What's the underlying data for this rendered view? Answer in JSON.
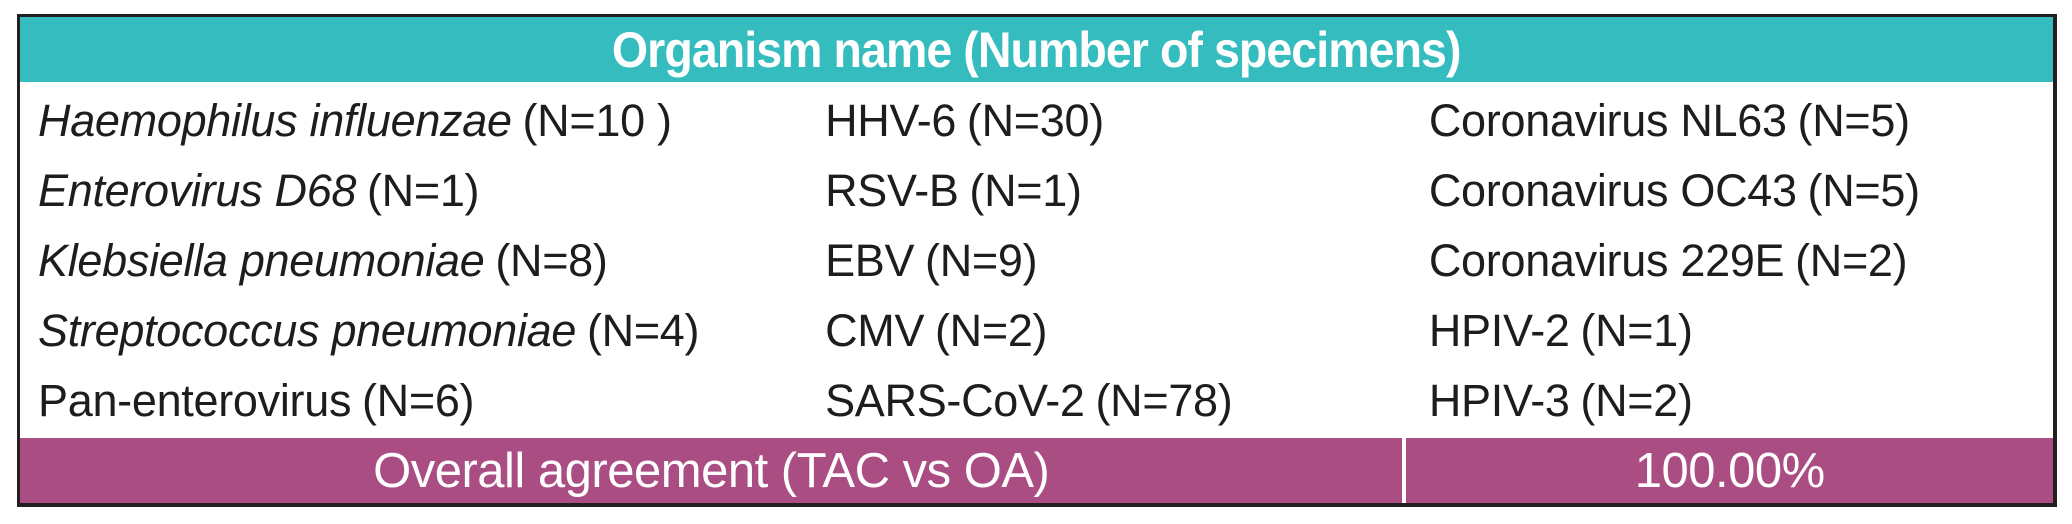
{
  "colors": {
    "header_bg": "#35BCBE",
    "footer_bg": "#A94D82",
    "border": "#231F20",
    "body_text": "#1D1D1F",
    "header_text": "#FFFFFF",
    "footer_text": "#FFFFFF",
    "divider": "#FFFFFF"
  },
  "table": {
    "header": {
      "title": "Organism name (Number of specimens)"
    },
    "columns": [
      [
        {
          "name": "Haemophilus influenzae",
          "count": "(N=10 )"
        },
        {
          "name": "Enterovirus D68",
          "count": "(N=1)"
        },
        {
          "name": "Klebsiella pneumoniae",
          "count": "(N=8)"
        },
        {
          "name": "Streptococcus pneumoniae",
          "count": "(N=4)"
        },
        {
          "name": "Pan-enterovirus",
          "count": "(N=6)"
        }
      ],
      [
        {
          "name": "HHV-6",
          "count": "(N=30)"
        },
        {
          "name": "RSV-B",
          "count": "(N=1)"
        },
        {
          "name": "EBV",
          "count": "(N=9)"
        },
        {
          "name": "CMV",
          "count": "(N=2)"
        },
        {
          "name": "SARS-CoV-2",
          "count": "(N=78)"
        }
      ],
      [
        {
          "name": "Coronavirus NL63",
          "count": "(N=5)"
        },
        {
          "name": "Coronavirus OC43",
          "count": "(N=5)"
        },
        {
          "name": "Coronavirus 229E",
          "count": "(N=2)"
        },
        {
          "name": "HPIV-2",
          "count": "(N=1)"
        },
        {
          "name": "HPIV-3",
          "count": "(N=2)"
        }
      ]
    ],
    "footer": {
      "label": "Overall agreement (TAC vs OA)",
      "value": "100.00%"
    }
  },
  "chart_data": {
    "type": "table",
    "title": "Organism name (Number of specimens)",
    "organisms": [
      {
        "name": "Haemophilus influenzae",
        "specimens": 10
      },
      {
        "name": "Enterovirus D68",
        "specimens": 1
      },
      {
        "name": "Klebsiella pneumoniae",
        "specimens": 8
      },
      {
        "name": "Streptococcus pneumoniae",
        "specimens": 4
      },
      {
        "name": "Pan-enterovirus",
        "specimens": 6
      },
      {
        "name": "HHV-6",
        "specimens": 30
      },
      {
        "name": "RSV-B",
        "specimens": 1
      },
      {
        "name": "EBV",
        "specimens": 9
      },
      {
        "name": "CMV",
        "specimens": 2
      },
      {
        "name": "SARS-CoV-2",
        "specimens": 78
      },
      {
        "name": "Coronavirus NL63",
        "specimens": 5
      },
      {
        "name": "Coronavirus OC43",
        "specimens": 5
      },
      {
        "name": "Coronavirus 229E",
        "specimens": 2
      },
      {
        "name": "HPIV-2",
        "specimens": 1
      },
      {
        "name": "HPIV-3",
        "specimens": 2
      }
    ],
    "overall_agreement": {
      "label": "Overall agreement (TAC vs OA)",
      "value_percent": 100.0
    }
  }
}
